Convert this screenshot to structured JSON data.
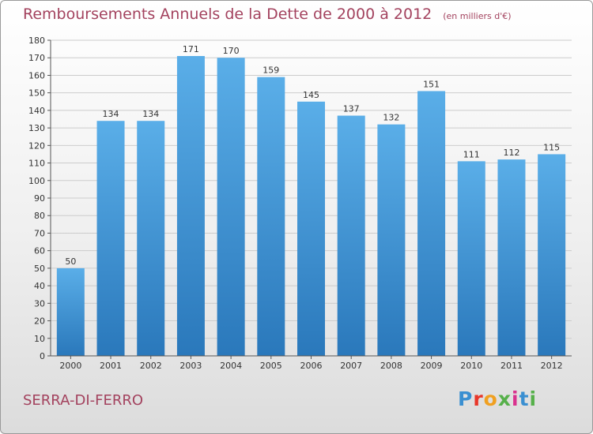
{
  "title": "Remboursements Annuels de la Dette de 2000 à 2012",
  "subtitle": "(en milliers d'€)",
  "commune": "SERRA-DI-FERRO",
  "logo": {
    "parts": [
      "P",
      "r",
      "o",
      "x",
      "i",
      "t",
      "i"
    ]
  },
  "colors": {
    "bar_top": "#5aaee8",
    "bar_bottom": "#2a78bb",
    "title": "#a3425e",
    "grid": "#cccccc"
  },
  "chart_data": {
    "type": "bar",
    "categories": [
      "2000",
      "2001",
      "2002",
      "2003",
      "2004",
      "2005",
      "2006",
      "2007",
      "2008",
      "2009",
      "2010",
      "2011",
      "2012"
    ],
    "values": [
      50,
      134,
      134,
      171,
      170,
      159,
      145,
      137,
      132,
      151,
      111,
      112,
      115
    ],
    "ylim": [
      0,
      180
    ],
    "yticks": [
      0,
      10,
      20,
      30,
      40,
      50,
      60,
      70,
      80,
      90,
      100,
      110,
      120,
      130,
      140,
      150,
      160,
      170,
      180
    ],
    "grid": true,
    "legend": "none"
  }
}
